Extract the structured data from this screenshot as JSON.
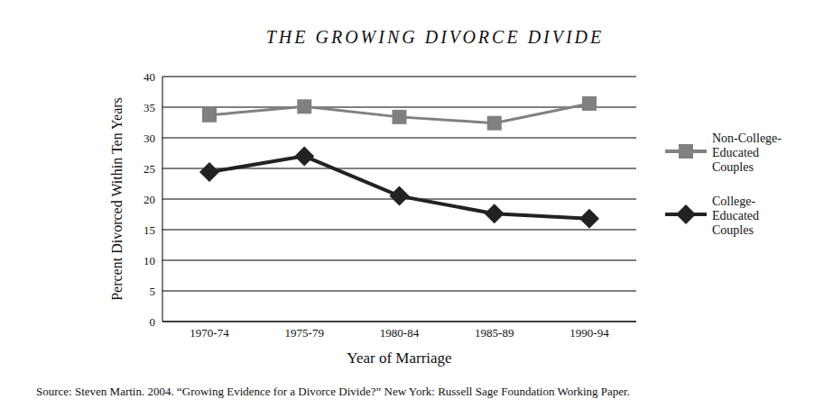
{
  "chart_data": {
    "type": "line",
    "title": "THE GROWING DIVORCE DIVIDE",
    "x_label": "Year of Marriage",
    "y_label": "Percent Divorced Within Ten Years",
    "source": "Source: Steven Martin. 2004. “Growing Evidence for a Divorce Divide?” New York: Russell Sage Foundation Working Paper.",
    "categories": [
      "1970-74",
      "1975-79",
      "1980-84",
      "1985-89",
      "1990-94"
    ],
    "series": [
      {
        "name": "Non-College-Educated Couples",
        "color": "#808080",
        "marker": "square",
        "values": [
          33.7,
          35.1,
          33.4,
          32.4,
          35.6
        ]
      },
      {
        "name": "College-Educated Couples",
        "color": "#222222",
        "marker": "diamond",
        "values": [
          24.4,
          27.0,
          20.5,
          17.6,
          16.8
        ]
      }
    ],
    "ylim": [
      0,
      40
    ],
    "yticks": [
      0,
      5,
      10,
      15,
      20,
      25,
      30,
      35,
      40
    ],
    "grid": true,
    "legend": "right"
  }
}
